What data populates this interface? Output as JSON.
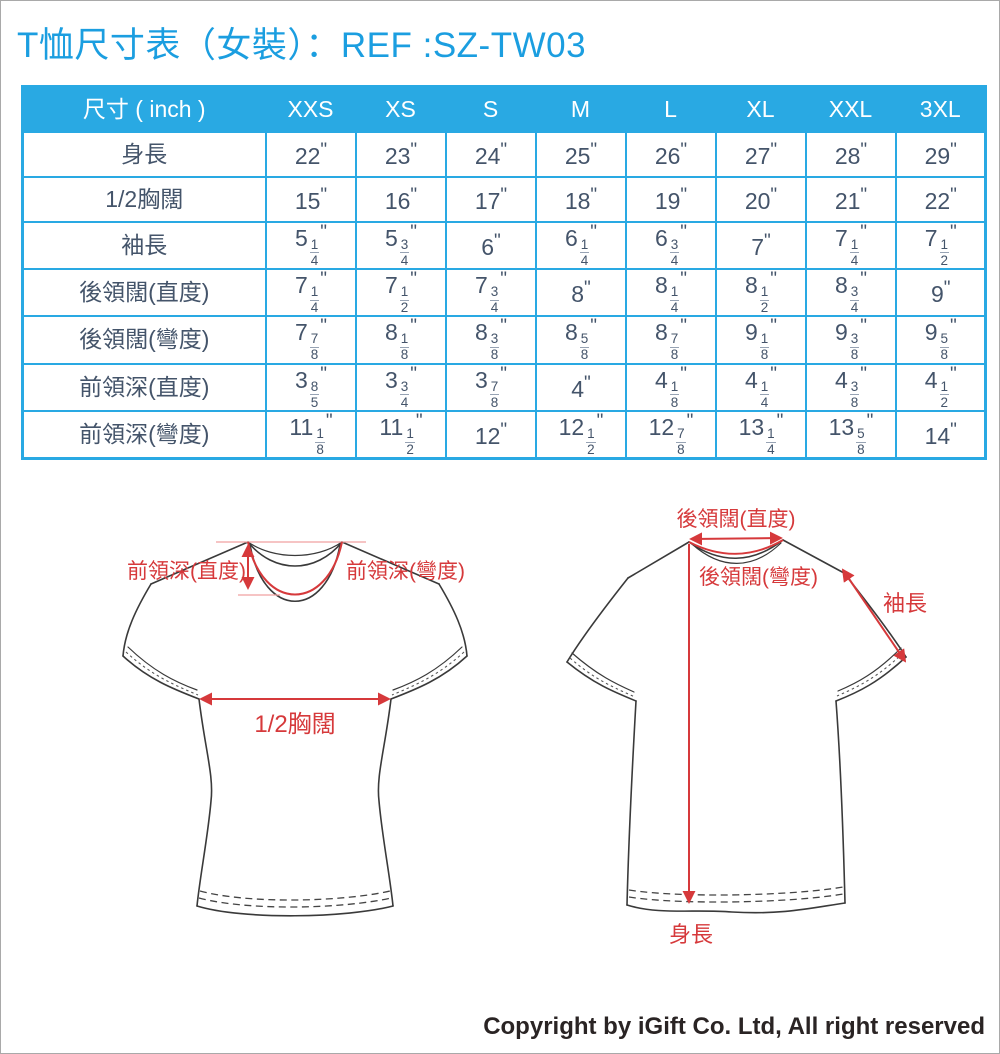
{
  "page": {
    "title": "T恤尺寸表（女裝）：REF :SZ-TW03",
    "copyright": "Copyright by iGift Co. Ltd, All right reserved"
  },
  "colors": {
    "accent_blue": "#29A9E3",
    "title_blue": "#1B9EE0",
    "cell_text": "#44546A",
    "annotation_red": "#D6393B",
    "shirt_outline": "#3A3A3A"
  },
  "size_table": {
    "header": [
      "尺寸 ( inch )",
      "XXS",
      "XS",
      "S",
      "M",
      "L",
      "XL",
      "XXL",
      "3XL"
    ],
    "rows": [
      {
        "label": "身長",
        "cells": [
          "22\"",
          "23\"",
          "24\"",
          "25\"",
          "26\"",
          "27\"",
          "28\"",
          "29\""
        ]
      },
      {
        "label": "1/2胸闊",
        "cells": [
          "15 \"",
          "16\"",
          "17\"",
          "18\"",
          "19\"",
          "20\"",
          "21\"",
          "22\""
        ]
      },
      {
        "label": "袖長",
        "cells": [
          "5 1/4\"",
          "5 3/4\"",
          "6 \"",
          "6 1/4\"",
          "6 3/4\"",
          "7\"",
          "7 1/4\"",
          "7 1/2\""
        ]
      },
      {
        "label": "後領闊(直度)",
        "cells": [
          "7 1/4\"",
          "7 1/2\"",
          "7 3/4\"",
          "8 \"",
          "8 1/4\"",
          "8 1/2\"",
          "8 3/4\"",
          "9\""
        ]
      },
      {
        "label": "後領闊(彎度)",
        "cells": [
          "7 7/8\"",
          "8 1/8\"",
          "8 3/8\"",
          "8 5/8\"",
          "8 7/8\"",
          "9 1/8\"",
          "9 3/8\"",
          "9 5/8\""
        ]
      },
      {
        "label": "前領深(直度)",
        "cells": [
          "3 8/5\"",
          "3 3/4\"",
          "3 7/8\"",
          "4 \"",
          "4 1/8\"",
          "4 1/4\"",
          "4 3/8\"",
          "4 1/2\""
        ]
      },
      {
        "label": "前領深(彎度)",
        "cells": [
          "11 1/8\"",
          "11 1/2\"",
          "12\"",
          "12 1/2\"",
          "12 7/8\"",
          "13 1/4\"",
          "13 5/8\"",
          "14\""
        ]
      }
    ]
  },
  "diagram": {
    "front": {
      "neck_depth_straight": "前領深(直度)",
      "neck_depth_curve": "前領深(彎度)",
      "half_chest": "1/2胸闊"
    },
    "back": {
      "back_neck_straight": "後領闊(直度)",
      "back_neck_curve": "後領闊(彎度)",
      "sleeve_length": "袖長",
      "body_length": "身長"
    }
  }
}
